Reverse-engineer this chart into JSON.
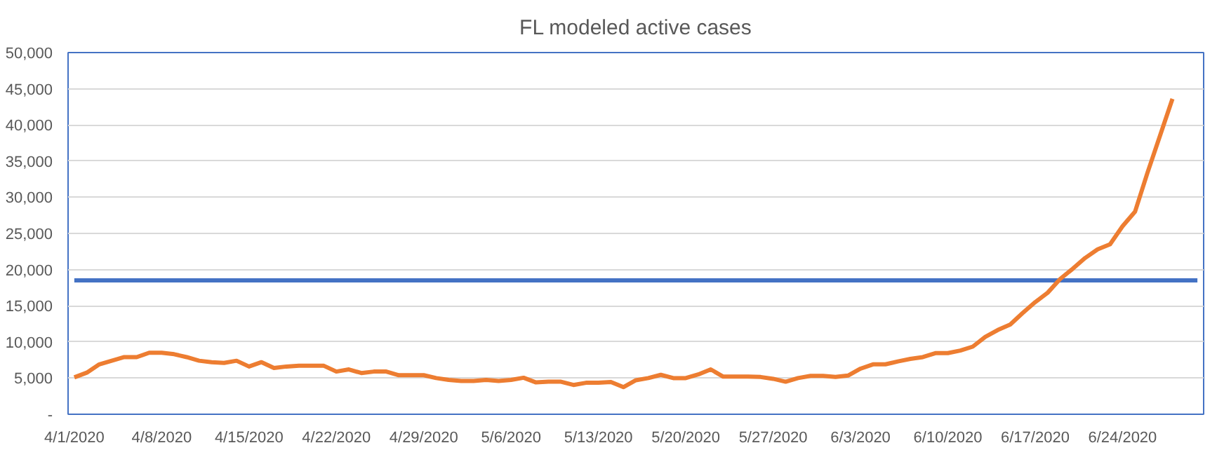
{
  "chart_data": {
    "type": "line",
    "title": "FL modeled active cases",
    "xlim": [
      "2020-03-31T12:00",
      "2020-06-30T12:00"
    ],
    "xticks": [
      {
        "value": "2020-04-01",
        "label": "4/1/2020"
      },
      {
        "value": "2020-04-08",
        "label": "4/8/2020"
      },
      {
        "value": "2020-04-15",
        "label": "4/15/2020"
      },
      {
        "value": "2020-04-22",
        "label": "4/22/2020"
      },
      {
        "value": "2020-04-29",
        "label": "4/29/2020"
      },
      {
        "value": "2020-05-06",
        "label": "5/6/2020"
      },
      {
        "value": "2020-05-13",
        "label": "5/13/2020"
      },
      {
        "value": "2020-05-20",
        "label": "5/20/2020"
      },
      {
        "value": "2020-05-27",
        "label": "5/27/2020"
      },
      {
        "value": "2020-06-03",
        "label": "6/3/2020"
      },
      {
        "value": "2020-06-10",
        "label": "6/10/2020"
      },
      {
        "value": "2020-06-17",
        "label": "6/17/2020"
      },
      {
        "value": "2020-06-24",
        "label": "6/24/2020"
      }
    ],
    "ylim": [
      0,
      50000
    ],
    "yticks": [
      {
        "value": 0,
        "label": "-"
      },
      {
        "value": 5000,
        "label": "5,000"
      },
      {
        "value": 10000,
        "label": "10,000"
      },
      {
        "value": 15000,
        "label": "15,000"
      },
      {
        "value": 20000,
        "label": "20,000"
      },
      {
        "value": 25000,
        "label": "25,000"
      },
      {
        "value": 30000,
        "label": "30,000"
      },
      {
        "value": 35000,
        "label": "35,000"
      },
      {
        "value": 40000,
        "label": "40,000"
      },
      {
        "value": 45000,
        "label": "45,000"
      },
      {
        "value": 50000,
        "label": "50,000"
      }
    ],
    "grid": "y",
    "marker": "none",
    "line_style": "solid",
    "series": [
      {
        "color": "#4472c4",
        "x": [
          "2020-04-01",
          "2020-06-30"
        ],
        "values": [
          18500,
          18500
        ]
      },
      {
        "color": "#ed7d31",
        "x": [
          "2020-04-01",
          "2020-04-02",
          "2020-04-03",
          "2020-04-04",
          "2020-04-05",
          "2020-04-06",
          "2020-04-07",
          "2020-04-08",
          "2020-04-09",
          "2020-04-10",
          "2020-04-11",
          "2020-04-12",
          "2020-04-13",
          "2020-04-14",
          "2020-04-15",
          "2020-04-16",
          "2020-04-17",
          "2020-04-18",
          "2020-04-19",
          "2020-04-20",
          "2020-04-21",
          "2020-04-22",
          "2020-04-23",
          "2020-04-24",
          "2020-04-25",
          "2020-04-26",
          "2020-04-27",
          "2020-04-28",
          "2020-04-29",
          "2020-04-30",
          "2020-05-01",
          "2020-05-02",
          "2020-05-03",
          "2020-05-04",
          "2020-05-05",
          "2020-05-06",
          "2020-05-07",
          "2020-05-08",
          "2020-05-09",
          "2020-05-10",
          "2020-05-11",
          "2020-05-12",
          "2020-05-13",
          "2020-05-14",
          "2020-05-15",
          "2020-05-16",
          "2020-05-17",
          "2020-05-18",
          "2020-05-19",
          "2020-05-20",
          "2020-05-21",
          "2020-05-22",
          "2020-05-23",
          "2020-05-24",
          "2020-05-25",
          "2020-05-26",
          "2020-05-27",
          "2020-05-28",
          "2020-05-29",
          "2020-05-30",
          "2020-05-31",
          "2020-06-01",
          "2020-06-02",
          "2020-06-03",
          "2020-06-04",
          "2020-06-05",
          "2020-06-06",
          "2020-06-07",
          "2020-06-08",
          "2020-06-09",
          "2020-06-10",
          "2020-06-11",
          "2020-06-12",
          "2020-06-13",
          "2020-06-14",
          "2020-06-15",
          "2020-06-16",
          "2020-06-17",
          "2020-06-18",
          "2020-06-19",
          "2020-06-20",
          "2020-06-21",
          "2020-06-22",
          "2020-06-23",
          "2020-06-24",
          "2020-06-25",
          "2020-06-26",
          "2020-06-27",
          "2020-06-28"
        ],
        "values": [
          5100,
          5750,
          6900,
          7400,
          7900,
          7900,
          8500,
          8500,
          8300,
          7900,
          7400,
          7200,
          7100,
          7400,
          6600,
          7200,
          6400,
          6600,
          6700,
          6700,
          6700,
          5900,
          6200,
          5700,
          5900,
          5900,
          5400,
          5400,
          5400,
          5000,
          4750,
          4600,
          4600,
          4750,
          4600,
          4750,
          5050,
          4400,
          4500,
          4500,
          4050,
          4350,
          4350,
          4450,
          3750,
          4700,
          5000,
          5450,
          5000,
          5000,
          5500,
          6200,
          5200,
          5200,
          5200,
          5150,
          4900,
          4500,
          5000,
          5300,
          5300,
          5150,
          5350,
          6300,
          6900,
          6900,
          7300,
          7650,
          7900,
          8450,
          8450,
          8800,
          9350,
          10700,
          11650,
          12400,
          14000,
          15500,
          16800,
          18700,
          20100,
          21600,
          22800,
          23500,
          26000,
          28000,
          33400,
          38500,
          43600
        ]
      }
    ]
  }
}
